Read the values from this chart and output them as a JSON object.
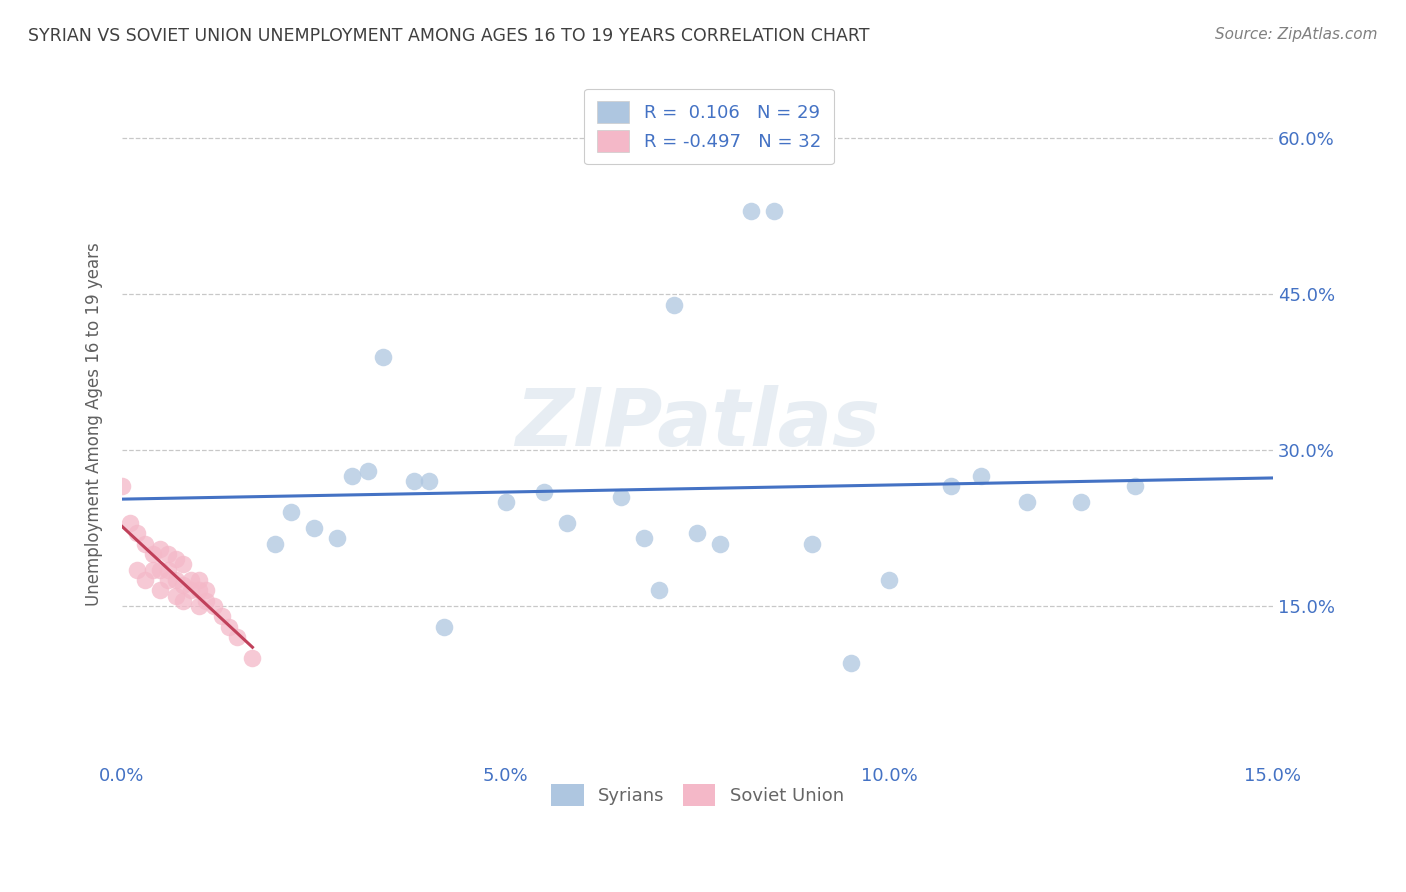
{
  "title": "SYRIAN VS SOVIET UNION UNEMPLOYMENT AMONG AGES 16 TO 19 YEARS CORRELATION CHART",
  "source": "Source: ZipAtlas.com",
  "ylabel": "Unemployment Among Ages 16 to 19 years",
  "xlim": [
    0.0,
    0.15
  ],
  "ylim": [
    0.0,
    0.65
  ],
  "x_ticks": [
    0.0,
    0.05,
    0.1,
    0.15
  ],
  "x_tick_labels": [
    "0.0%",
    "5.0%",
    "10.0%",
    "15.0%"
  ],
  "y_ticks": [
    0.15,
    0.3,
    0.45,
    0.6
  ],
  "y_tick_labels": [
    "15.0%",
    "30.0%",
    "45.0%",
    "60.0%"
  ],
  "syrians_x": [
    0.02,
    0.022,
    0.025,
    0.028,
    0.03,
    0.032,
    0.034,
    0.038,
    0.04,
    0.042,
    0.05,
    0.055,
    0.058,
    0.065,
    0.068,
    0.07,
    0.072,
    0.075,
    0.078,
    0.082,
    0.085,
    0.09,
    0.095,
    0.1,
    0.108,
    0.112,
    0.118,
    0.125,
    0.132
  ],
  "syrians_y": [
    0.21,
    0.24,
    0.225,
    0.215,
    0.275,
    0.28,
    0.39,
    0.27,
    0.27,
    0.13,
    0.25,
    0.26,
    0.23,
    0.255,
    0.215,
    0.165,
    0.44,
    0.22,
    0.21,
    0.53,
    0.53,
    0.21,
    0.095,
    0.175,
    0.265,
    0.275,
    0.25,
    0.25,
    0.265
  ],
  "soviet_x": [
    0.0,
    0.001,
    0.002,
    0.002,
    0.003,
    0.003,
    0.004,
    0.004,
    0.005,
    0.005,
    0.005,
    0.006,
    0.006,
    0.006,
    0.007,
    0.007,
    0.007,
    0.008,
    0.008,
    0.008,
    0.009,
    0.009,
    0.01,
    0.01,
    0.01,
    0.011,
    0.011,
    0.012,
    0.013,
    0.014,
    0.015,
    0.017
  ],
  "soviet_y": [
    0.265,
    0.23,
    0.22,
    0.185,
    0.21,
    0.175,
    0.2,
    0.185,
    0.205,
    0.185,
    0.165,
    0.2,
    0.185,
    0.175,
    0.195,
    0.175,
    0.16,
    0.19,
    0.17,
    0.155,
    0.175,
    0.165,
    0.175,
    0.165,
    0.15,
    0.165,
    0.155,
    0.15,
    0.14,
    0.13,
    0.12,
    0.1
  ],
  "syrian_R": 0.106,
  "syrian_N": 29,
  "soviet_R": -0.497,
  "soviet_N": 32,
  "syrian_color": "#aec6e0",
  "soviet_color": "#f4b8c8",
  "syrian_line_color": "#4472c4",
  "soviet_line_color": "#c0405a",
  "bg_color": "#ffffff",
  "grid_color": "#bbbbbb",
  "title_color": "#404040",
  "label_color": "#4472c4",
  "watermark": "ZIPatlas",
  "legend_labels": [
    "Syrians",
    "Soviet Union"
  ]
}
